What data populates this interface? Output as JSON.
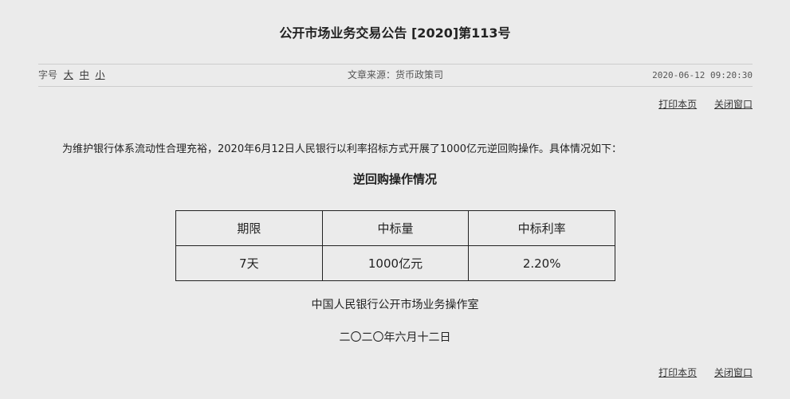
{
  "title": "公开市场业务交易公告 [2020]第113号",
  "infobar": {
    "font_label": "字号",
    "sizes": [
      "大",
      "中",
      "小"
    ],
    "source": "文章来源：货币政策司",
    "datetime": "2020-06-12 09:20:30"
  },
  "links": {
    "print": "打印本页",
    "close": "关闭窗口"
  },
  "paragraph": "为维护银行体系流动性合理充裕，2020年6月12日人民银行以利率招标方式开展了1000亿元逆回购操作。具体情况如下：",
  "subtitle": "逆回购操作情况",
  "table": {
    "headers": [
      "期限",
      "中标量",
      "中标利率"
    ],
    "row": [
      "7天",
      "1000亿元",
      "2.20%"
    ]
  },
  "signature": "中国人民银行公开市场业务操作室",
  "date": "二〇二〇年六月十二日"
}
